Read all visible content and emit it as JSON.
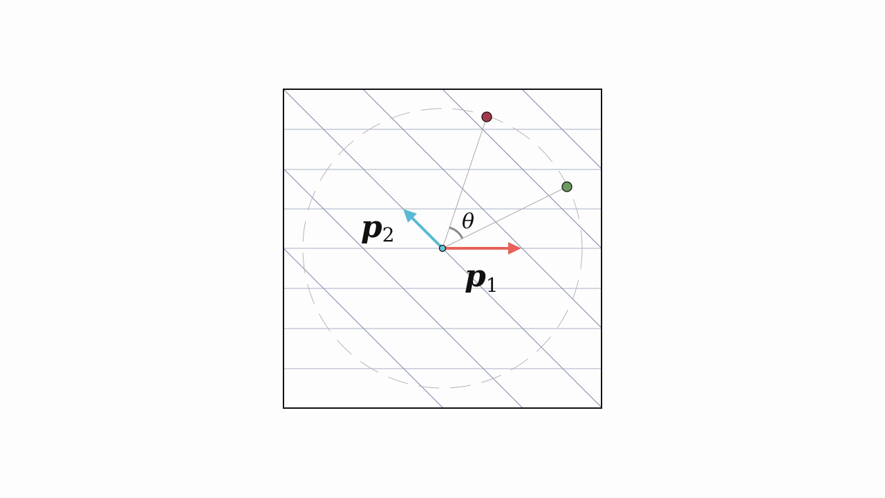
{
  "diagram": {
    "colors": {
      "background": "#fdfdfd",
      "frame": "#111111",
      "lattice_horizontal": "#a8aec4",
      "lattice_diagonal": "#7e86ad",
      "dashed_circle": "#b5b5b5",
      "guide_lines": "#a9a9a9",
      "vector_p1": "#e8615a",
      "vector_p2": "#5ab9d2",
      "origin_point": "#6cc3d8",
      "point_red": "#a23a4e",
      "point_green": "#6c9a5e",
      "angle_arc": "#8a8a8a"
    },
    "labels": {
      "p1_symbol": "p",
      "p1_subscript": "1",
      "p2_symbol": "p",
      "p2_subscript": "2",
      "angle": "θ"
    },
    "icons": {
      "origin": "origin-point-icon",
      "red_point": "red-point-icon",
      "green_point": "green-point-icon"
    }
  }
}
